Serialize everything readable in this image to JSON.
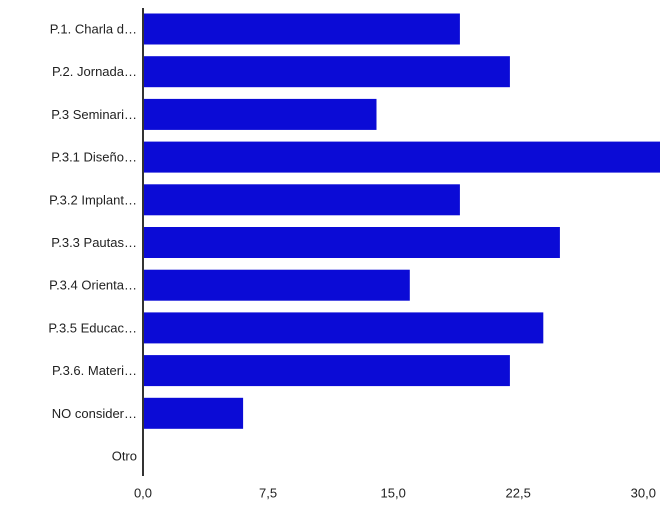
{
  "chart_data": {
    "type": "bar",
    "orientation": "horizontal",
    "categories": [
      "P.1. Charla d…",
      "P.2. Jornada…",
      "P.3 Seminari…",
      "P.3.1 Diseño…",
      "P.3.2 Implant…",
      "P.3.3 Pautas…",
      "P.3.4 Orienta…",
      "P.3.5 Educac…",
      "P.3.6. Materi…",
      "NO consider…",
      "Otro"
    ],
    "values": [
      19,
      22,
      14,
      31,
      19,
      25,
      16,
      24,
      22,
      6,
      0
    ],
    "xlim": [
      0,
      31
    ],
    "xticks": [
      "0,0",
      "7,5",
      "15,0",
      "22,5",
      "30,0"
    ],
    "xtick_values": [
      0,
      7.5,
      15,
      22.5,
      30
    ],
    "bar_color": "#0b0bd6",
    "grid": false,
    "title": "",
    "xlabel": "",
    "ylabel": ""
  }
}
